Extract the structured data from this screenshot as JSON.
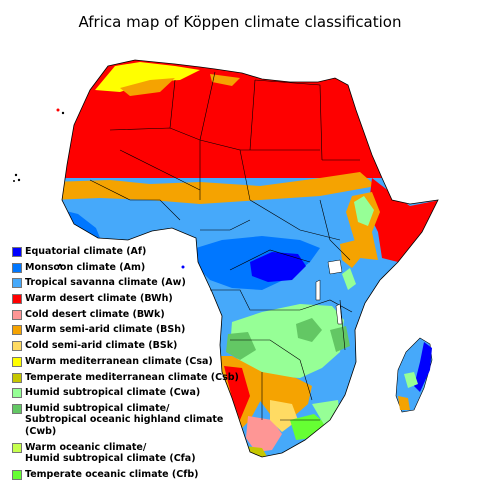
{
  "title": "Africa map of Köppen climate classification",
  "legend": [
    {
      "label": "Equatorial climate (Af)",
      "color": "#0000fe"
    },
    {
      "label": "Monsoon climate (Am)",
      "color": "#0077ff"
    },
    {
      "label": "Tropical savanna climate (Aw)",
      "color": "#46a9fa"
    },
    {
      "label": "Warm desert climate (BWh)",
      "color": "#fe0000"
    },
    {
      "label": "Cold desert climate (BWk)",
      "color": "#fe9695"
    },
    {
      "label": "Warm semi-arid climate (BSh)",
      "color": "#f5a301"
    },
    {
      "label": "Cold semi-arid climate (BSk)",
      "color": "#ffdb63"
    },
    {
      "label": "Warm mediterranean climate (Csa)",
      "color": "#ffff00"
    },
    {
      "label": "Temperate mediterranean climate (Csb)",
      "color": "#c6c700"
    },
    {
      "label": "Humid subtropical climate (Cwa)",
      "color": "#96ff96"
    },
    {
      "label": "Humid subtropical climate/\nSubtropical oceanic highland climate (Cwb)",
      "color": "#63c764"
    },
    {
      "label": "Warm oceanic climate/\nHumid subtropical climate (Cfa)",
      "color": "#c6ff4e"
    },
    {
      "label": "Temperate oceanic climate (Cfb)",
      "color": "#66ff33"
    }
  ]
}
